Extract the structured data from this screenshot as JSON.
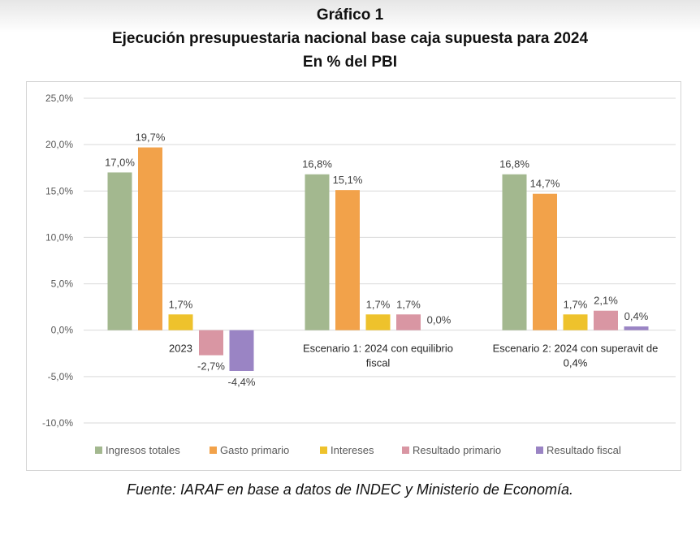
{
  "chart_data": {
    "type": "bar",
    "title": "Gráfico 1",
    "subtitle": "Ejecución presupuestaria nacional base caja supuesta para 2024",
    "subtitle2": "En % del PBI",
    "categories": [
      "2023",
      "Escenario 1: 2024 con equilibrio fiscal",
      "Escenario 2: 2024 con superavit de 0,4%"
    ],
    "category_label_lines": [
      [
        "2023"
      ],
      [
        "Escenario 1: 2024 con equilibrio",
        "fiscal"
      ],
      [
        "Escenario 2: 2024 con superavit de",
        "0,4%"
      ]
    ],
    "series": [
      {
        "name": "Ingresos totales",
        "color": "#a3b88f",
        "values": [
          17.0,
          16.8,
          16.8
        ],
        "labels": [
          "17,0%",
          "16,8%",
          "16,8%"
        ]
      },
      {
        "name": "Gasto primario",
        "color": "#f2a24a",
        "values": [
          19.7,
          15.1,
          14.7
        ],
        "labels": [
          "19,7%",
          "15,1%",
          "14,7%"
        ]
      },
      {
        "name": "Intereses",
        "color": "#eec22c",
        "values": [
          1.7,
          1.7,
          1.7
        ],
        "labels": [
          "1,7%",
          "1,7%",
          "1,7%"
        ]
      },
      {
        "name": "Resultado primario",
        "color": "#d996a3",
        "values": [
          -2.7,
          1.7,
          2.1
        ],
        "labels": [
          "-2,7%",
          "1,7%",
          "2,1%"
        ]
      },
      {
        "name": "Resultado fiscal",
        "color": "#9a84c4",
        "values": [
          -4.4,
          0.0,
          0.4
        ],
        "labels": [
          "-4,4%",
          "0,0%",
          "0,4%"
        ]
      }
    ],
    "ylim": [
      -10,
      25
    ],
    "yticks": [
      25,
      20,
      15,
      10,
      5,
      0,
      -5,
      -10
    ],
    "ytick_labels": [
      "25,0%",
      "20,0%",
      "15,0%",
      "10,0%",
      "5,0%",
      "0,0%",
      "-5,0%",
      "-10,0%"
    ],
    "grid": true,
    "legend_position": "bottom"
  },
  "source_note": "Fuente: IARAF en base a datos de INDEC y Ministerio de Economía."
}
